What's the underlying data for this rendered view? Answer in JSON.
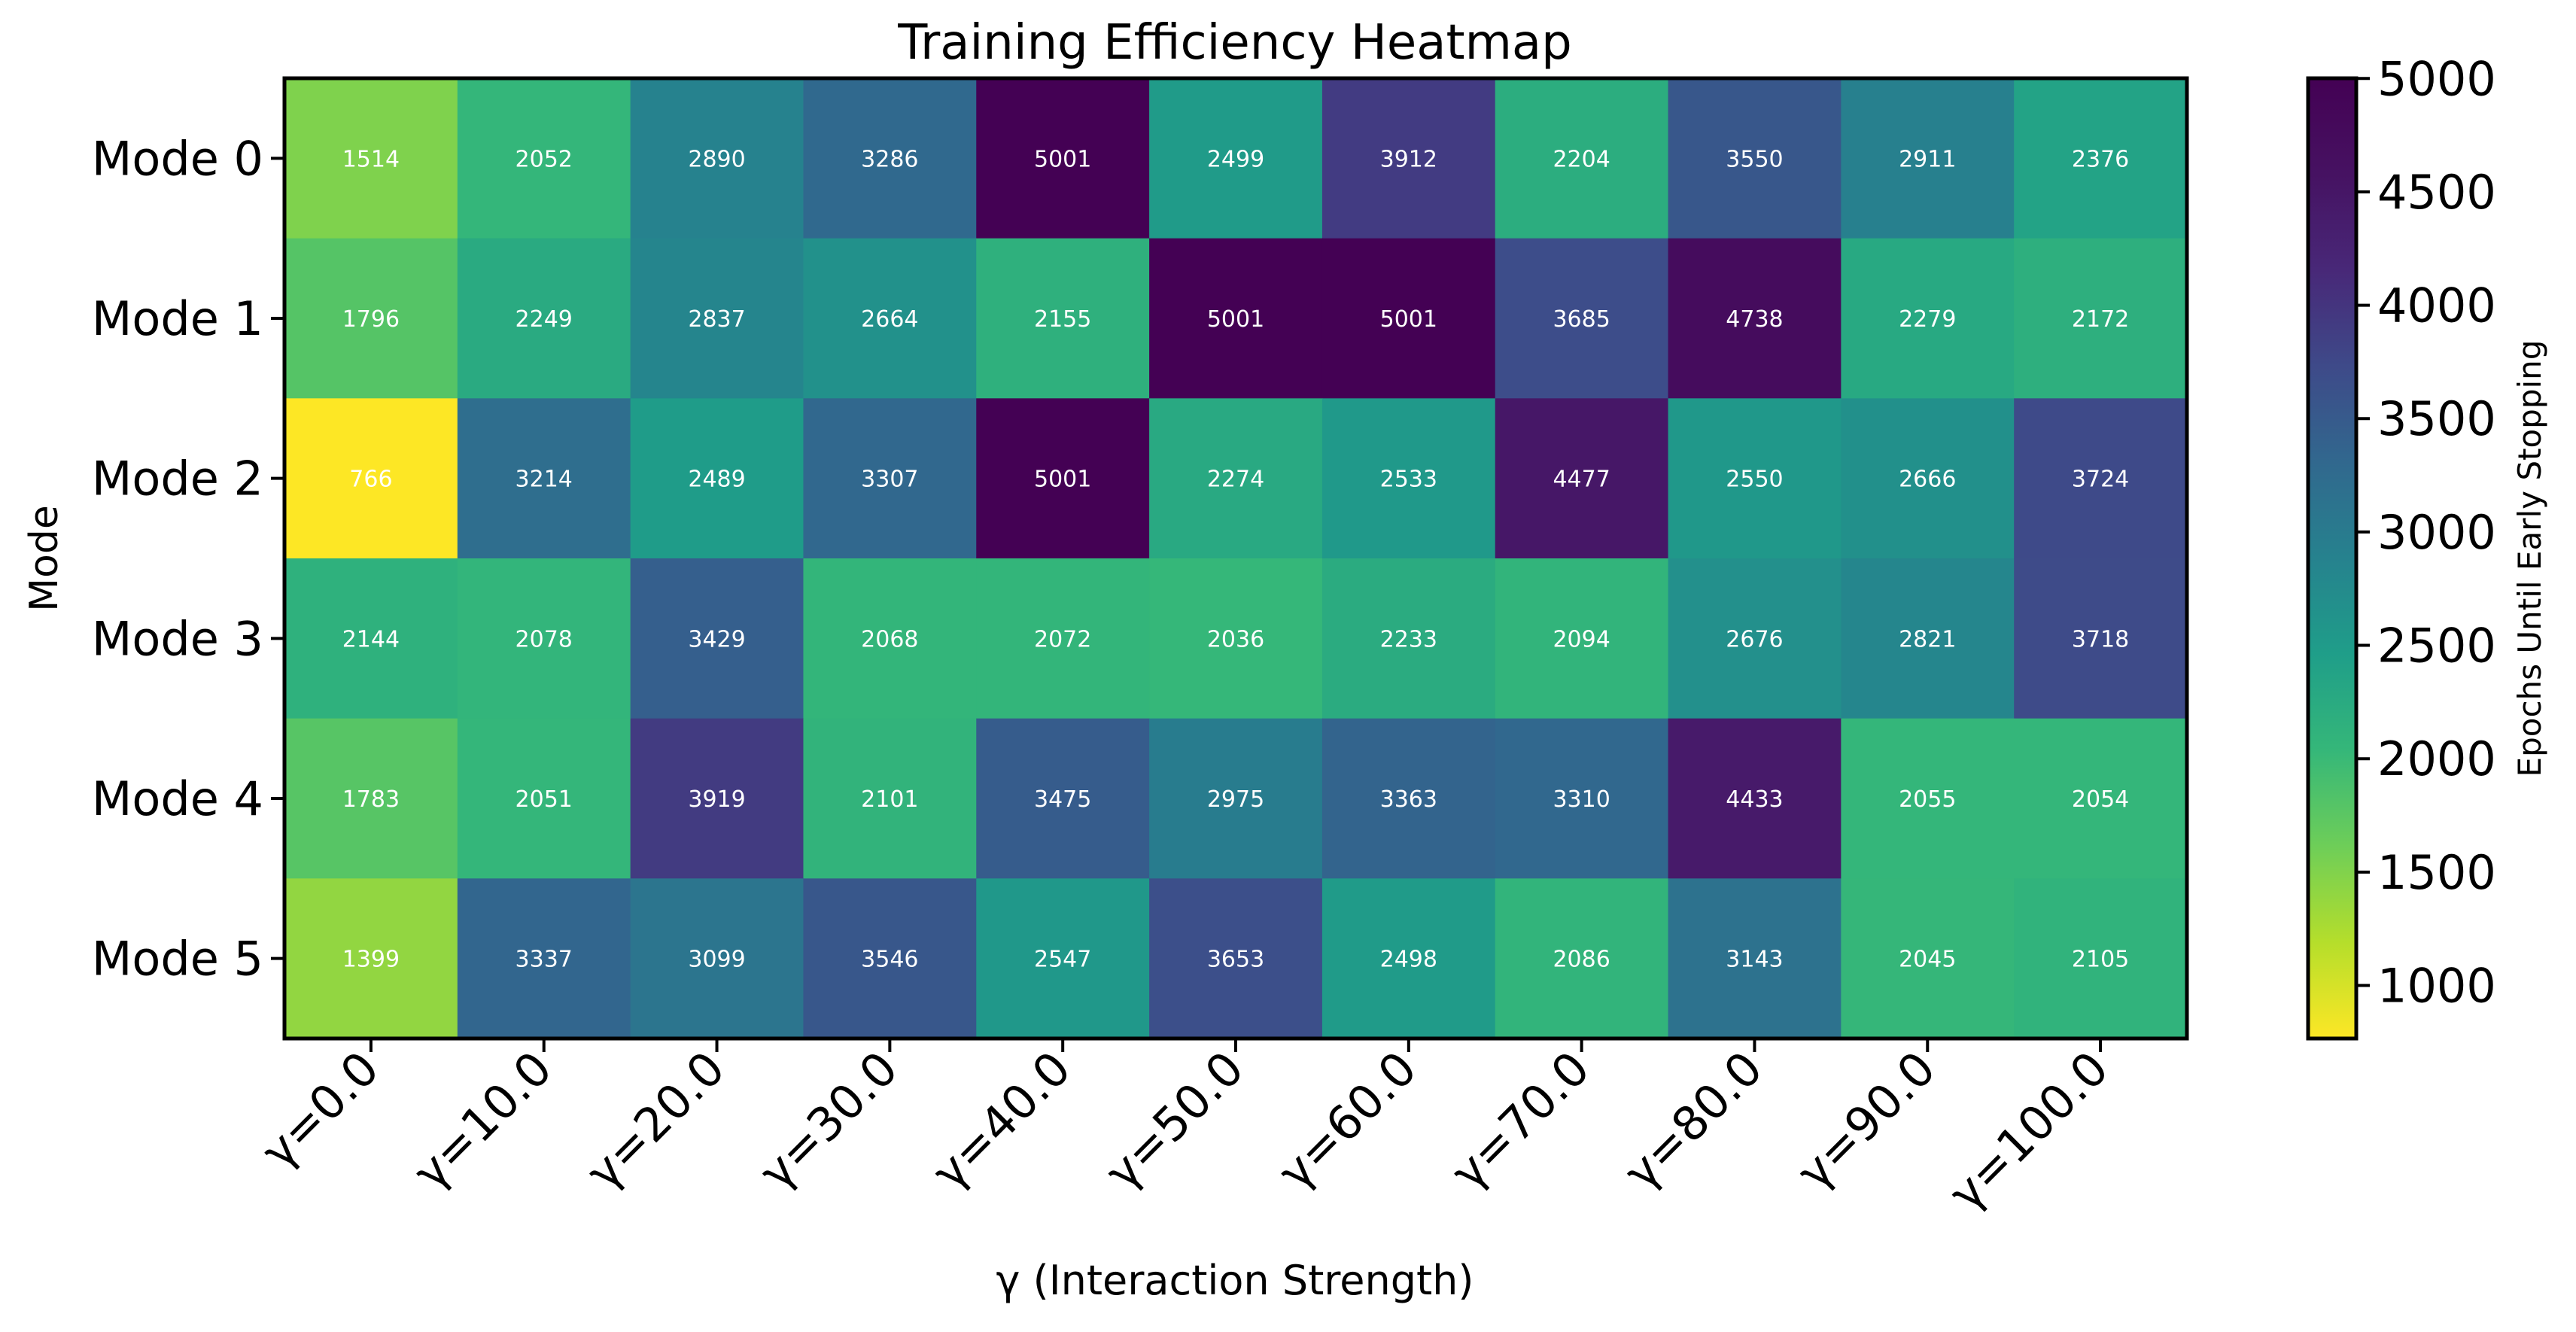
{
  "chart_data": {
    "type": "heatmap",
    "title": "Training Efficiency Heatmap",
    "xlabel": "γ (Interaction Strength)",
    "ylabel": "Mode",
    "x_categories": [
      "γ=0.0",
      "γ=10.0",
      "γ=20.0",
      "γ=30.0",
      "γ=40.0",
      "γ=50.0",
      "γ=60.0",
      "γ=70.0",
      "γ=80.0",
      "γ=90.0",
      "γ=100.0"
    ],
    "y_categories": [
      "Mode 0",
      "Mode 1",
      "Mode 2",
      "Mode 3",
      "Mode 4",
      "Mode 5"
    ],
    "values": [
      [
        1514,
        2052,
        2890,
        3286,
        5001,
        2499,
        3912,
        2204,
        3550,
        2911,
        2376
      ],
      [
        1796,
        2249,
        2837,
        2664,
        2155,
        5001,
        5001,
        3685,
        4738,
        2279,
        2172
      ],
      [
        766,
        3214,
        2489,
        3307,
        5001,
        2274,
        2533,
        4477,
        2550,
        2666,
        3724
      ],
      [
        2144,
        2078,
        3429,
        2068,
        2072,
        2036,
        2233,
        2094,
        2676,
        2821,
        3718
      ],
      [
        1783,
        2051,
        3919,
        2101,
        3475,
        2975,
        3363,
        3310,
        4433,
        2055,
        2054
      ],
      [
        1399,
        3337,
        3099,
        3546,
        2547,
        3653,
        2498,
        2086,
        3143,
        2045,
        2105
      ]
    ],
    "colormap": "viridis_r",
    "color_range": [
      766,
      5001
    ],
    "colorbar": {
      "label": "Epochs Until Early Stopping",
      "ticks": [
        1000,
        1500,
        2000,
        2500,
        3000,
        3500,
        4000,
        4500,
        5000
      ]
    }
  }
}
